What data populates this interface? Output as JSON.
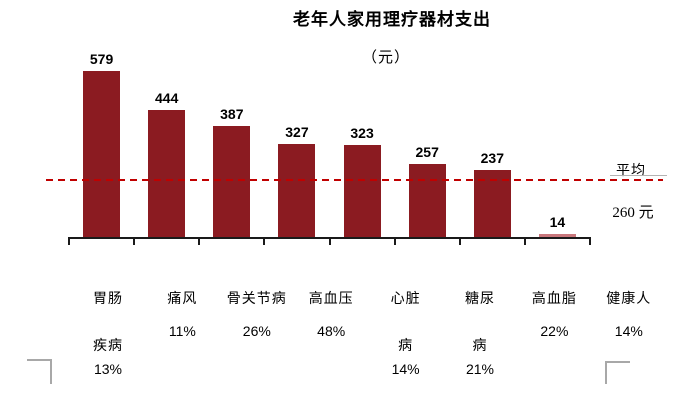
{
  "title": "老年人家用理疗器材支出",
  "unit_label": "（元）",
  "average_label_top": "平均",
  "average_label_bottom": "260 元",
  "chart_data": {
    "type": "bar",
    "title": "老年人家用理疗器材支出",
    "unit": "（元）",
    "categories": [
      "胃肠疾病",
      "痛风",
      "骨关节病",
      "高血压",
      "心脏病",
      "糖尿病",
      "高血脂",
      "健康人"
    ],
    "category_label_lines": [
      [
        "胃肠",
        "疾病"
      ],
      [
        "痛风"
      ],
      [
        "骨关节病"
      ],
      [
        "高血压"
      ],
      [
        "心脏",
        "病"
      ],
      [
        "糖尿",
        "病"
      ],
      [
        "高血脂"
      ],
      [
        "健康人"
      ]
    ],
    "category_shares": [
      "13%",
      "11%",
      "26%",
      "48%",
      "14%",
      "21%",
      "22%",
      "14%"
    ],
    "values": [
      579,
      444,
      387,
      327,
      323,
      257,
      237,
      14
    ],
    "highlight_index": 7,
    "average_line": {
      "value": 260,
      "label_line1": "平均",
      "label_line2": "260 元"
    },
    "colors": {
      "bar": "#8B1B21",
      "highlight_bar": "#C9777C",
      "average_line": "#C00000",
      "axis": "#1A1A1A",
      "text": "#000000"
    },
    "ylim": [
      0,
      600
    ],
    "grid": false,
    "legend": "none",
    "value_labels": true
  }
}
